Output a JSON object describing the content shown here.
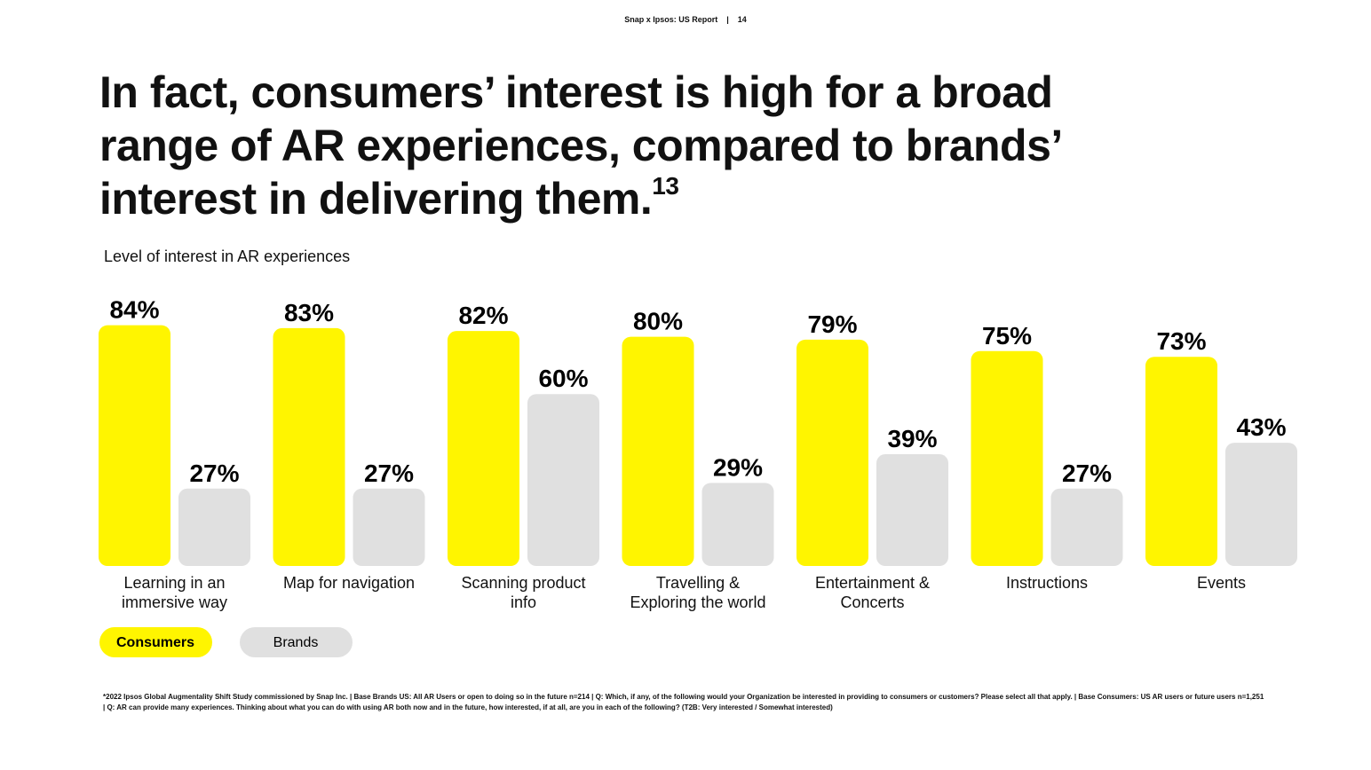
{
  "header": {
    "report": "Snap x Ipsos: US Report",
    "page": "14"
  },
  "chart_data": {
    "type": "bar",
    "title": "In fact, consumers’ interest is high for a broad range of AR experiences, compared to brands’ interest in delivering them.",
    "title_footnote_ref": "13",
    "subtitle": "Level of interest in AR experiences",
    "categories": [
      "Learning in an immersive way",
      "Map for navigation",
      "Scanning product info",
      "Travelling & Exploring the world",
      "Entertainment & Concerts",
      "Instructions",
      "Events"
    ],
    "series": [
      {
        "name": "Consumers",
        "color": "#fff500",
        "values": [
          84,
          83,
          82,
          80,
          79,
          75,
          73
        ],
        "value_labels": [
          "84%",
          "83%",
          "82%",
          "80%",
          "79%",
          "75%",
          "73%"
        ]
      },
      {
        "name": "Brands",
        "color": "#e0e0e0",
        "values": [
          27,
          27,
          60,
          29,
          39,
          27,
          43
        ],
        "value_labels": [
          "27%",
          "27%",
          "60%",
          "29%",
          "39%",
          "27%",
          "43%"
        ]
      }
    ],
    "footnote": "*2022 Ipsos Global Augmentality Shift Study commissioned by Snap Inc. | Base Brands US: All AR Users or open to doing so in the future n=214 | Q: Which, if any, of the following would your Organization be interested in providing to consumers or customers? Please select all that apply. | Base Consumers: US AR users or future users n=1,251 | Q: AR can provide many experiences. Thinking about what you can do with using AR both now and in the future, how interested, if at all, are you in each of the following? (T2B: Very interested / Somewhat interested)"
  }
}
